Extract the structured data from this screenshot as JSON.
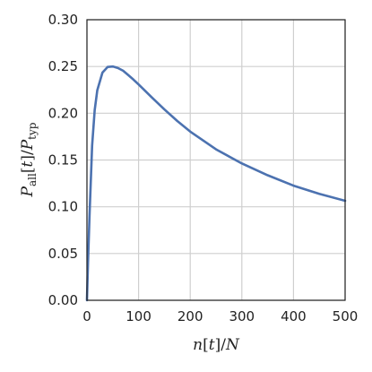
{
  "chart_data": {
    "type": "line",
    "xlabel_parts": {
      "n": "n",
      "t": "t",
      "N": "N"
    },
    "ylabel_parts": {
      "P": "P",
      "all": "all",
      "t": "t",
      "typ": "typ"
    },
    "xlim": [
      0,
      500
    ],
    "ylim": [
      0,
      0.3
    ],
    "x_ticks": [
      "0",
      "100",
      "200",
      "300",
      "400",
      "500"
    ],
    "y_ticks": [
      "0.00",
      "0.05",
      "0.10",
      "0.15",
      "0.20",
      "0.25",
      "0.30"
    ],
    "grid": true,
    "series": [
      {
        "color": "#4c72b0",
        "x": [
          0,
          2,
          5,
          10,
          15,
          20,
          30,
          40,
          50,
          60,
          70,
          80,
          90,
          100,
          110,
          125,
          150,
          175,
          200,
          250,
          300,
          350,
          400,
          450,
          500
        ],
        "y": [
          0.0,
          0.0392,
          0.0907,
          0.1653,
          0.2034,
          0.2245,
          0.2434,
          0.2495,
          0.25,
          0.2484,
          0.2455,
          0.2408,
          0.236,
          0.2308,
          0.2254,
          0.2173,
          0.2041,
          0.1917,
          0.1804,
          0.1614,
          0.1463,
          0.1337,
          0.1226,
          0.1138,
          0.1064
        ]
      }
    ]
  }
}
